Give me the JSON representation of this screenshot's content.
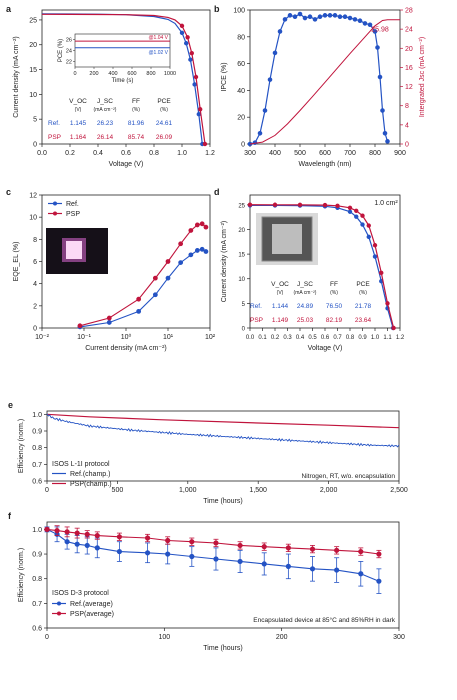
{
  "colors": {
    "ref": "#2453c4",
    "psp": "#c0143c",
    "axis": "#222222"
  },
  "chart_data": [
    {
      "panel": "a",
      "type": "line",
      "xlabel": "Voltage (V)",
      "ylabel": "Current density (mA cm⁻²)",
      "xlim": [
        0,
        1.2
      ],
      "ylim": [
        0,
        27
      ],
      "xticks": [
        "0.0",
        "0.2",
        "0.4",
        "0.6",
        "0.8",
        "1.0",
        "1.2"
      ],
      "yticks": [
        "0",
        "5",
        "10",
        "15",
        "20",
        "25"
      ],
      "series": [
        {
          "key": "ref",
          "x": [
            0,
            0.2,
            0.4,
            0.6,
            0.8,
            0.9,
            0.95,
            1.0,
            1.03,
            1.06,
            1.09,
            1.12,
            1.145
          ],
          "y": [
            26.23,
            26.2,
            26.15,
            26.05,
            25.7,
            25.1,
            24.3,
            22.4,
            20.3,
            17.0,
            12.0,
            6.0,
            0
          ]
        },
        {
          "key": "psp",
          "x": [
            0,
            0.2,
            0.4,
            0.6,
            0.8,
            0.9,
            0.95,
            1.0,
            1.04,
            1.07,
            1.1,
            1.13,
            1.164
          ],
          "y": [
            26.14,
            26.12,
            26.1,
            26.05,
            25.9,
            25.5,
            25.0,
            23.8,
            21.5,
            18.3,
            13.5,
            7.0,
            0
          ]
        }
      ],
      "inset": {
        "xlabel": "Time (s)",
        "ylabel": "PCE (%)",
        "xticks": [
          "0",
          "200",
          "400",
          "600",
          "800",
          "1000"
        ],
        "yticks": [
          "22",
          "24",
          "26"
        ],
        "xlim": [
          0,
          1000
        ],
        "ylim": [
          21,
          27
        ],
        "series": [
          {
            "key": "psp",
            "label": "@1.04 V",
            "value": 25.7
          },
          {
            "key": "ref",
            "label": "@1.02 V",
            "value": 24.5
          }
        ]
      },
      "table": {
        "headers": [
          "V_OC",
          "J_SC",
          "FF",
          "PCE"
        ],
        "units": [
          "(V)",
          "(mA cm⁻²)",
          "(%)",
          "(%)"
        ],
        "rows": [
          {
            "key": "ref",
            "label": "Ref.",
            "values": [
              "1.145",
              "26.23",
              "81.96",
              "24.61"
            ]
          },
          {
            "key": "psp",
            "label": "PSP",
            "values": [
              "1.164",
              "26.14",
              "85.74",
              "26.09"
            ]
          }
        ]
      }
    },
    {
      "panel": "b",
      "type": "line",
      "xlabel": "Wavelength (nm)",
      "ylabel": "IPCE (%)",
      "ylabel_right": "Intergrated Jsc (mA cm⁻²)",
      "xlim": [
        300,
        900
      ],
      "ylim": [
        0,
        100
      ],
      "ylim_right": [
        0,
        28
      ],
      "xticks": [
        "300",
        "400",
        "500",
        "600",
        "700",
        "800",
        "900"
      ],
      "yticks": [
        "0",
        "20",
        "40",
        "60",
        "80",
        "100"
      ],
      "yticks_right": [
        "0",
        "4",
        "8",
        "12",
        "16",
        "20",
        "24",
        "28"
      ],
      "ipce": {
        "x": [
          300,
          320,
          340,
          360,
          380,
          400,
          420,
          440,
          460,
          480,
          500,
          520,
          540,
          560,
          580,
          600,
          620,
          640,
          660,
          680,
          700,
          720,
          740,
          760,
          780,
          800,
          810,
          820,
          830,
          840,
          850
        ],
        "y": [
          0,
          1,
          8,
          25,
          48,
          68,
          84,
          93,
          96,
          95,
          97,
          94,
          95,
          93,
          95,
          96,
          96,
          96,
          95,
          95,
          94,
          93,
          92,
          90,
          89,
          84,
          72,
          50,
          25,
          8,
          2
        ]
      },
      "jsc": {
        "x": [
          300,
          350,
          400,
          450,
          500,
          550,
          600,
          650,
          700,
          750,
          800,
          830,
          850,
          900
        ],
        "y": [
          0,
          0.4,
          1.8,
          4.2,
          7.0,
          9.9,
          12.9,
          15.9,
          18.9,
          21.8,
          24.7,
          25.8,
          25.98,
          25.98
        ]
      },
      "annotation": "25.98"
    },
    {
      "panel": "c",
      "type": "line",
      "xlabel": "Current density (mA cm⁻²)",
      "ylabel": "EQE_EL (%)",
      "xlog": true,
      "xlim": [
        0.01,
        100
      ],
      "ylim": [
        0,
        12
      ],
      "xticks": [
        "10⁻²",
        "10⁻¹",
        "10⁰",
        "10¹",
        "10²"
      ],
      "yticks": [
        "0",
        "2",
        "4",
        "6",
        "8",
        "10",
        "12"
      ],
      "series": [
        {
          "key": "ref",
          "name": "Ref.",
          "x": [
            0.08,
            0.4,
            2,
            5,
            10,
            20,
            35,
            50,
            65,
            80
          ],
          "y": [
            0.1,
            0.5,
            1.5,
            3.0,
            4.5,
            5.9,
            6.6,
            7.0,
            7.1,
            6.9
          ]
        },
        {
          "key": "psp",
          "name": "PSP",
          "x": [
            0.08,
            0.4,
            2,
            5,
            10,
            20,
            35,
            50,
            65,
            80
          ],
          "y": [
            0.2,
            0.9,
            2.6,
            4.5,
            6.0,
            7.6,
            8.8,
            9.3,
            9.4,
            9.1
          ]
        }
      ]
    },
    {
      "panel": "d",
      "type": "line",
      "xlabel": "Voltage (V)",
      "ylabel": "Current density (mA cm⁻²)",
      "xlim": [
        0,
        1.2
      ],
      "ylim": [
        0,
        27
      ],
      "xticks": [
        "0.0",
        "0.1",
        "0.2",
        "0.3",
        "0.4",
        "0.5",
        "0.6",
        "0.7",
        "0.8",
        "0.9",
        "1.0",
        "1.1",
        "1.2"
      ],
      "yticks": [
        "0",
        "5",
        "10",
        "15",
        "20",
        "25"
      ],
      "annotation": "1.0 cm²",
      "series": [
        {
          "key": "ref",
          "x": [
            0,
            0.2,
            0.4,
            0.6,
            0.7,
            0.8,
            0.85,
            0.9,
            0.95,
            1.0,
            1.05,
            1.1,
            1.144
          ],
          "y": [
            24.89,
            24.88,
            24.85,
            24.7,
            24.4,
            23.6,
            22.6,
            21.0,
            18.5,
            14.5,
            9.5,
            4.0,
            0
          ]
        },
        {
          "key": "psp",
          "x": [
            0,
            0.2,
            0.4,
            0.6,
            0.7,
            0.8,
            0.85,
            0.9,
            0.95,
            1.0,
            1.05,
            1.1,
            1.149
          ],
          "y": [
            25.03,
            25.02,
            25.0,
            24.95,
            24.8,
            24.4,
            23.8,
            22.8,
            20.8,
            16.8,
            11.2,
            5.0,
            0
          ]
        }
      ],
      "table": {
        "headers": [
          "V_OC",
          "J_SC",
          "FF",
          "PCE"
        ],
        "units": [
          "(V)",
          "(mA cm⁻²)",
          "(%)",
          "(%)"
        ],
        "rows": [
          {
            "key": "ref",
            "label": "Ref.",
            "values": [
              "1.144",
              "24.89",
              "76.50",
              "21.78"
            ]
          },
          {
            "key": "psp",
            "label": "PSP",
            "values": [
              "1.149",
              "25.03",
              "82.19",
              "23.64"
            ]
          }
        ]
      }
    },
    {
      "panel": "e",
      "type": "line",
      "xlabel": "Time (hours)",
      "ylabel": "Efficiency (norm.)",
      "xlim": [
        0,
        2500
      ],
      "ylim": [
        0.6,
        1.02
      ],
      "xticks": [
        "0",
        "500",
        "1,000",
        "1,500",
        "2,000",
        "2,500"
      ],
      "yticks": [
        "0.6",
        "0.7",
        "0.8",
        "0.9",
        "1.0"
      ],
      "protocol": "ISOS L-1I protocol",
      "note": "Nitrogen, RT, w/o. encapsulation",
      "series": [
        {
          "key": "ref",
          "name": "Ref.(champ.)",
          "x": [
            0,
            50,
            150,
            300,
            600,
            1000,
            1500,
            2000,
            2300,
            2500
          ],
          "y": [
            1.0,
            0.975,
            0.955,
            0.93,
            0.905,
            0.88,
            0.855,
            0.83,
            0.815,
            0.81
          ]
        },
        {
          "key": "psp",
          "name": "PSP(champ.)",
          "x": [
            0,
            300,
            800,
            1500,
            2000,
            2500
          ],
          "y": [
            1.0,
            0.985,
            0.968,
            0.948,
            0.935,
            0.92
          ]
        }
      ]
    },
    {
      "panel": "f",
      "type": "line",
      "xlabel": "Time (hours)",
      "ylabel": "Efficiency (norm.)",
      "xlim": [
        0,
        350
      ],
      "ylim": [
        0.6,
        1.03
      ],
      "xticks": [
        "0",
        "100",
        "200",
        "300"
      ],
      "yticks": [
        "0.6",
        "0.7",
        "0.8",
        "0.9",
        "1.0"
      ],
      "protocol": "ISOS D-3 protocol",
      "note": "Encapsulated device at 85°C and 85%RH in dark",
      "series": [
        {
          "key": "ref",
          "name": "Ref.(average)",
          "x": [
            0,
            10,
            20,
            30,
            40,
            50,
            72,
            100,
            120,
            144,
            168,
            192,
            216,
            240,
            264,
            288,
            312,
            330
          ],
          "y": [
            1.0,
            0.98,
            0.95,
            0.94,
            0.935,
            0.925,
            0.91,
            0.905,
            0.9,
            0.89,
            0.88,
            0.87,
            0.86,
            0.85,
            0.84,
            0.835,
            0.82,
            0.79
          ],
          "err": [
            0.01,
            0.03,
            0.03,
            0.035,
            0.035,
            0.04,
            0.04,
            0.04,
            0.04,
            0.04,
            0.045,
            0.045,
            0.045,
            0.05,
            0.05,
            0.05,
            0.05,
            0.05
          ]
        },
        {
          "key": "psp",
          "name": "PSP(average)",
          "x": [
            0,
            10,
            20,
            30,
            40,
            50,
            72,
            100,
            120,
            144,
            168,
            192,
            216,
            240,
            264,
            288,
            312,
            330
          ],
          "y": [
            1.0,
            0.995,
            0.99,
            0.985,
            0.98,
            0.975,
            0.97,
            0.965,
            0.955,
            0.95,
            0.945,
            0.935,
            0.93,
            0.925,
            0.92,
            0.915,
            0.91,
            0.9
          ],
          "err": [
            0.005,
            0.02,
            0.02,
            0.02,
            0.015,
            0.015,
            0.015,
            0.015,
            0.015,
            0.015,
            0.015,
            0.015,
            0.015,
            0.015,
            0.015,
            0.015,
            0.015,
            0.015
          ]
        }
      ]
    }
  ]
}
